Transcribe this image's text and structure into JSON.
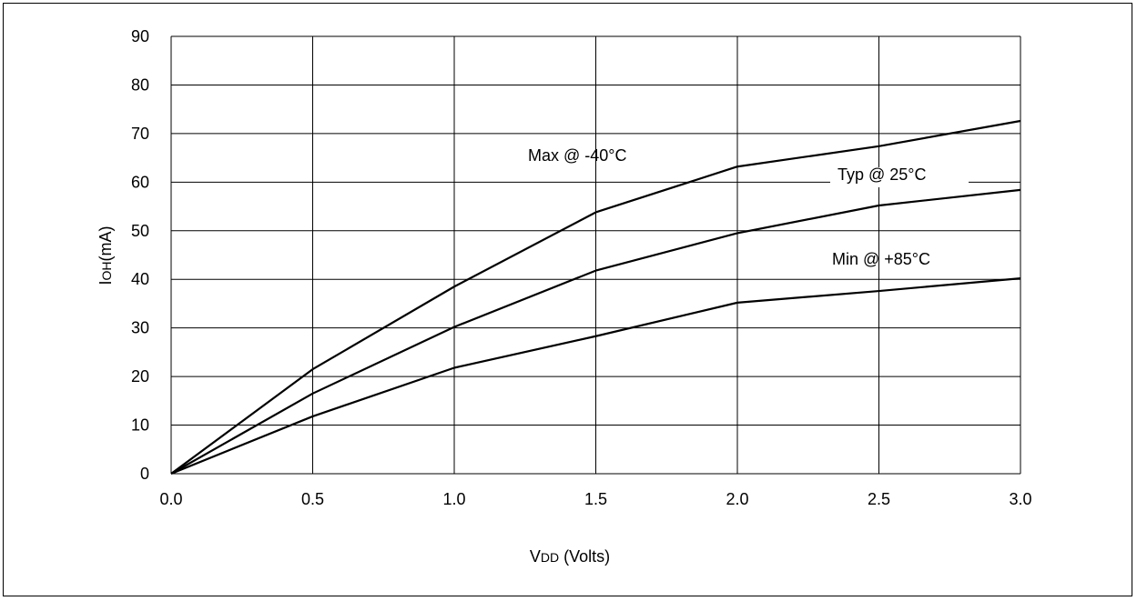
{
  "chart_data": {
    "type": "line",
    "title": "",
    "xlabel": {
      "main": "V",
      "sub": "DD",
      "suffix": " (Volts)"
    },
    "ylabel": {
      "main": "I",
      "sub": "OH",
      "suffix": "(mA)"
    },
    "xlim": [
      0,
      3
    ],
    "ylim": [
      0,
      90
    ],
    "xticks": [
      0,
      0.5,
      1,
      1.5,
      2,
      2.5,
      3
    ],
    "xtick_labels": [
      "0.0",
      "0.5",
      "1.0",
      "1.5",
      "2.0",
      "2.5",
      "3.0"
    ],
    "yticks": [
      0,
      10,
      20,
      30,
      40,
      50,
      60,
      70,
      80,
      90
    ],
    "ytick_labels": [
      "0",
      "10",
      "20",
      "30",
      "40",
      "50",
      "60",
      "70",
      "80",
      "90"
    ],
    "grid": true,
    "x": [
      0,
      0.5,
      1,
      1.5,
      2,
      2.5,
      3
    ],
    "series": [
      {
        "values": [
          0,
          21.5,
          38.5,
          53.8,
          63.2,
          67.4,
          72.6
        ]
      },
      {
        "values": [
          0,
          16.5,
          30.2,
          41.8,
          49.5,
          55.2,
          58.4
        ]
      },
      {
        "values": [
          0,
          11.8,
          21.8,
          28.3,
          35.2,
          37.6,
          40.2
        ]
      }
    ],
    "annotations": [
      {
        "text": "Max @ -40°C",
        "series_index": 0
      },
      {
        "text": "Typ @ 25°C",
        "series_index": 1
      },
      {
        "text": "Min @ +85°C",
        "series_index": 2
      }
    ]
  }
}
